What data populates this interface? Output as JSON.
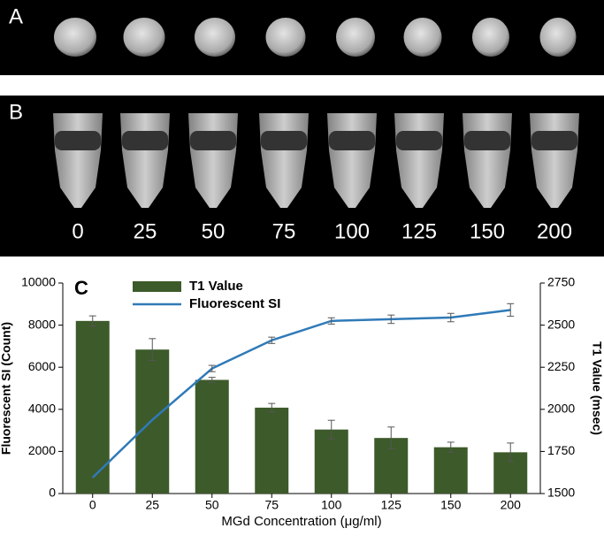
{
  "panels": {
    "a_label": "A",
    "b_label": "B",
    "b_concentrations": [
      "0",
      "25",
      "50",
      "75",
      "100",
      "125",
      "150",
      "200"
    ]
  },
  "chart_data": {
    "type": "bar",
    "panel_label": "C",
    "x_label": "MGd Concentration (μg/ml)",
    "y_label": "Fluorescent SI (Count)",
    "y2_label": "T1 Value (msec)",
    "categories": [
      "0",
      "25",
      "50",
      "75",
      "100",
      "125",
      "150",
      "200"
    ],
    "series": [
      {
        "name": "T1 Value",
        "type": "bar",
        "axis": "y2",
        "color": "#3d5a2a",
        "values": [
          2525,
          2355,
          2175,
          2010,
          1880,
          1830,
          1775,
          1745
        ],
        "errors": [
          30,
          65,
          15,
          25,
          55,
          65,
          30,
          55
        ]
      },
      {
        "name": "Fluorescent SI",
        "type": "line",
        "color": "#2f7ab8",
        "values": [
          760,
          3500,
          5940,
          7280,
          8200,
          8280,
          8360,
          8720
        ],
        "errors": [
          0,
          0,
          150,
          150,
          150,
          200,
          200,
          300
        ]
      }
    ],
    "ylim": [
      0,
      10000
    ],
    "yticks": [
      0,
      2000,
      4000,
      6000,
      8000,
      10000
    ],
    "y2lim": [
      1500,
      2750
    ],
    "y2ticks": [
      1500,
      1750,
      2000,
      2250,
      2500,
      2750
    ],
    "legend": "top-left"
  }
}
